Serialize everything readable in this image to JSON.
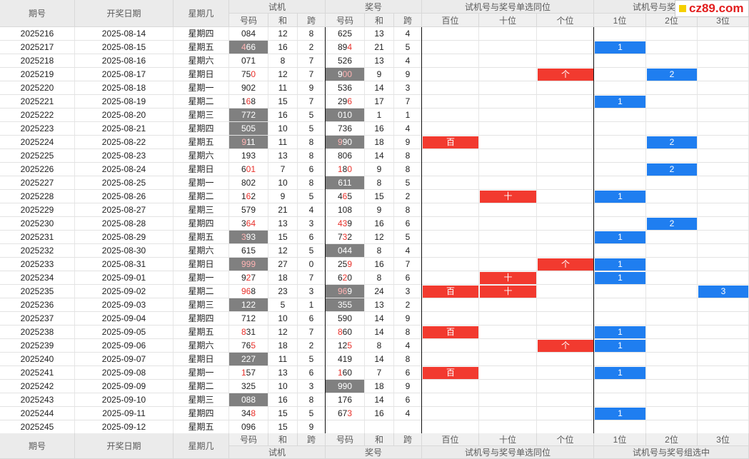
{
  "header": {
    "col_issue": "期号",
    "col_date": "开奖日期",
    "col_weekday": "星期几",
    "group_trial": "试机",
    "group_draw": "奖号",
    "group_same_pos": "试机号与奖号单选同位",
    "group_combo": "试机号与奖号组选中",
    "sub_code": "号码",
    "sub_sum": "和",
    "sub_span": "跨",
    "pos_hundred": "百位",
    "pos_ten": "十位",
    "pos_one": "个位",
    "combo_1": "1位",
    "combo_2": "2位",
    "combo_3": "3位"
  },
  "logo_text": "cz89.com",
  "colors": {
    "mark_red": "#f23a2f",
    "mark_blue": "#1f7ef0",
    "highlight_gray": "#808080",
    "digit_red": "#e8302a"
  },
  "rows": [
    {
      "issue": "2025216",
      "date": "2025-08-14",
      "weekday": "星期四",
      "trial": "084",
      "trial_sum": "12",
      "trial_span": "8",
      "draw": "625",
      "draw_sum": "13",
      "draw_span": "4",
      "trial_red": [],
      "draw_red": [],
      "trial_hl": false,
      "draw_hl": false,
      "pos_hundred": "",
      "pos_ten": "",
      "pos_one": "",
      "combo": ""
    },
    {
      "issue": "2025217",
      "date": "2025-08-15",
      "weekday": "星期五",
      "trial": "466",
      "trial_sum": "16",
      "trial_span": "2",
      "draw": "894",
      "draw_sum": "21",
      "draw_span": "5",
      "trial_red": [
        0
      ],
      "draw_red": [
        2
      ],
      "trial_hl": true,
      "draw_hl": false,
      "pos_hundred": "",
      "pos_ten": "",
      "pos_one": "",
      "combo": "1"
    },
    {
      "issue": "2025218",
      "date": "2025-08-16",
      "weekday": "星期六",
      "trial": "071",
      "trial_sum": "8",
      "trial_span": "7",
      "draw": "526",
      "draw_sum": "13",
      "draw_span": "4",
      "trial_red": [],
      "draw_red": [],
      "trial_hl": false,
      "draw_hl": false,
      "pos_hundred": "",
      "pos_ten": "",
      "pos_one": "",
      "combo": ""
    },
    {
      "issue": "2025219",
      "date": "2025-08-17",
      "weekday": "星期日",
      "trial": "750",
      "trial_sum": "12",
      "trial_span": "7",
      "draw": "900",
      "draw_sum": "9",
      "draw_span": "9",
      "trial_red": [
        2
      ],
      "draw_red": [
        1,
        2
      ],
      "trial_hl": false,
      "draw_hl": true,
      "pos_hundred": "",
      "pos_ten": "",
      "pos_one": "个",
      "combo": "2"
    },
    {
      "issue": "2025220",
      "date": "2025-08-18",
      "weekday": "星期一",
      "trial": "902",
      "trial_sum": "11",
      "trial_span": "9",
      "draw": "536",
      "draw_sum": "14",
      "draw_span": "3",
      "trial_red": [],
      "draw_red": [],
      "trial_hl": false,
      "draw_hl": false,
      "pos_hundred": "",
      "pos_ten": "",
      "pos_one": "",
      "combo": ""
    },
    {
      "issue": "2025221",
      "date": "2025-08-19",
      "weekday": "星期二",
      "trial": "168",
      "trial_sum": "15",
      "trial_span": "7",
      "draw": "296",
      "draw_sum": "17",
      "draw_span": "7",
      "trial_red": [
        1
      ],
      "draw_red": [
        2
      ],
      "trial_hl": false,
      "draw_hl": false,
      "pos_hundred": "",
      "pos_ten": "",
      "pos_one": "",
      "combo": "1"
    },
    {
      "issue": "2025222",
      "date": "2025-08-20",
      "weekday": "星期三",
      "trial": "772",
      "trial_sum": "16",
      "trial_span": "5",
      "draw": "010",
      "draw_sum": "1",
      "draw_span": "1",
      "trial_red": [],
      "draw_red": [],
      "trial_hl": true,
      "draw_hl": true,
      "pos_hundred": "",
      "pos_ten": "",
      "pos_one": "",
      "combo": ""
    },
    {
      "issue": "2025223",
      "date": "2025-08-21",
      "weekday": "星期四",
      "trial": "505",
      "trial_sum": "10",
      "trial_span": "5",
      "draw": "736",
      "draw_sum": "16",
      "draw_span": "4",
      "trial_red": [],
      "draw_red": [],
      "trial_hl": true,
      "draw_hl": false,
      "pos_hundred": "",
      "pos_ten": "",
      "pos_one": "",
      "combo": ""
    },
    {
      "issue": "2025224",
      "date": "2025-08-22",
      "weekday": "星期五",
      "trial": "911",
      "trial_sum": "11",
      "trial_span": "8",
      "draw": "990",
      "draw_sum": "18",
      "draw_span": "9",
      "trial_red": [
        0
      ],
      "draw_red": [
        0
      ],
      "trial_hl": true,
      "draw_hl": true,
      "pos_hundred": "百",
      "pos_ten": "",
      "pos_one": "",
      "combo": "2"
    },
    {
      "issue": "2025225",
      "date": "2025-08-23",
      "weekday": "星期六",
      "trial": "193",
      "trial_sum": "13",
      "trial_span": "8",
      "draw": "806",
      "draw_sum": "14",
      "draw_span": "8",
      "trial_red": [],
      "draw_red": [],
      "trial_hl": false,
      "draw_hl": false,
      "pos_hundred": "",
      "pos_ten": "",
      "pos_one": "",
      "combo": ""
    },
    {
      "issue": "2025226",
      "date": "2025-08-24",
      "weekday": "星期日",
      "trial": "601",
      "trial_sum": "7",
      "trial_span": "6",
      "draw": "180",
      "draw_sum": "9",
      "draw_span": "8",
      "trial_red": [
        1,
        2
      ],
      "draw_red": [
        0,
        2
      ],
      "trial_hl": false,
      "draw_hl": false,
      "pos_hundred": "",
      "pos_ten": "",
      "pos_one": "",
      "combo": "2"
    },
    {
      "issue": "2025227",
      "date": "2025-08-25",
      "weekday": "星期一",
      "trial": "802",
      "trial_sum": "10",
      "trial_span": "8",
      "draw": "611",
      "draw_sum": "8",
      "draw_span": "5",
      "trial_red": [],
      "draw_red": [],
      "trial_hl": false,
      "draw_hl": true,
      "pos_hundred": "",
      "pos_ten": "",
      "pos_one": "",
      "combo": ""
    },
    {
      "issue": "2025228",
      "date": "2025-08-26",
      "weekday": "星期二",
      "trial": "162",
      "trial_sum": "9",
      "trial_span": "5",
      "draw": "465",
      "draw_sum": "15",
      "draw_span": "2",
      "trial_red": [
        1
      ],
      "draw_red": [
        1
      ],
      "trial_hl": false,
      "draw_hl": false,
      "pos_hundred": "",
      "pos_ten": "十",
      "pos_one": "",
      "combo": "1"
    },
    {
      "issue": "2025229",
      "date": "2025-08-27",
      "weekday": "星期三",
      "trial": "579",
      "trial_sum": "21",
      "trial_span": "4",
      "draw": "108",
      "draw_sum": "9",
      "draw_span": "8",
      "trial_red": [],
      "draw_red": [],
      "trial_hl": false,
      "draw_hl": false,
      "pos_hundred": "",
      "pos_ten": "",
      "pos_one": "",
      "combo": ""
    },
    {
      "issue": "2025230",
      "date": "2025-08-28",
      "weekday": "星期四",
      "trial": "364",
      "trial_sum": "13",
      "trial_span": "3",
      "draw": "439",
      "draw_sum": "16",
      "draw_span": "6",
      "trial_red": [
        1,
        2
      ],
      "draw_red": [
        0,
        1
      ],
      "trial_hl": false,
      "draw_hl": false,
      "pos_hundred": "",
      "pos_ten": "",
      "pos_one": "",
      "combo": "2"
    },
    {
      "issue": "2025231",
      "date": "2025-08-29",
      "weekday": "星期五",
      "trial": "393",
      "trial_sum": "15",
      "trial_span": "6",
      "draw": "732",
      "draw_sum": "12",
      "draw_span": "5",
      "trial_red": [
        0
      ],
      "draw_red": [
        1
      ],
      "trial_hl": true,
      "draw_hl": false,
      "pos_hundred": "",
      "pos_ten": "",
      "pos_one": "",
      "combo": "1"
    },
    {
      "issue": "2025232",
      "date": "2025-08-30",
      "weekday": "星期六",
      "trial": "615",
      "trial_sum": "12",
      "trial_span": "5",
      "draw": "044",
      "draw_sum": "8",
      "draw_span": "4",
      "trial_red": [],
      "draw_red": [],
      "trial_hl": false,
      "draw_hl": true,
      "pos_hundred": "",
      "pos_ten": "",
      "pos_one": "",
      "combo": ""
    },
    {
      "issue": "2025233",
      "date": "2025-08-31",
      "weekday": "星期日",
      "trial": "999",
      "trial_sum": "27",
      "trial_span": "0",
      "draw": "259",
      "draw_sum": "16",
      "draw_span": "7",
      "trial_red": [
        0,
        1,
        2
      ],
      "draw_red": [
        2
      ],
      "trial_hl": true,
      "draw_hl": false,
      "pos_hundred": "",
      "pos_ten": "",
      "pos_one": "个",
      "combo": "1"
    },
    {
      "issue": "2025234",
      "date": "2025-09-01",
      "weekday": "星期一",
      "trial": "927",
      "trial_sum": "18",
      "trial_span": "7",
      "draw": "620",
      "draw_sum": "8",
      "draw_span": "6",
      "trial_red": [
        1
      ],
      "draw_red": [
        1
      ],
      "trial_hl": false,
      "draw_hl": false,
      "pos_hundred": "",
      "pos_ten": "十",
      "pos_one": "",
      "combo": "1"
    },
    {
      "issue": "2025235",
      "date": "2025-09-02",
      "weekday": "星期二",
      "trial": "968",
      "trial_sum": "23",
      "trial_span": "3",
      "draw": "969",
      "draw_sum": "24",
      "draw_span": "3",
      "trial_red": [
        0,
        1
      ],
      "draw_red": [
        0,
        1
      ],
      "trial_hl": false,
      "draw_hl": true,
      "pos_hundred": "百",
      "pos_ten": "十",
      "pos_one": "",
      "combo": "3"
    },
    {
      "issue": "2025236",
      "date": "2025-09-03",
      "weekday": "星期三",
      "trial": "122",
      "trial_sum": "5",
      "trial_span": "1",
      "draw": "355",
      "draw_sum": "13",
      "draw_span": "2",
      "trial_red": [],
      "draw_red": [],
      "trial_hl": true,
      "draw_hl": true,
      "pos_hundred": "",
      "pos_ten": "",
      "pos_one": "",
      "combo": ""
    },
    {
      "issue": "2025237",
      "date": "2025-09-04",
      "weekday": "星期四",
      "trial": "712",
      "trial_sum": "10",
      "trial_span": "6",
      "draw": "590",
      "draw_sum": "14",
      "draw_span": "9",
      "trial_red": [],
      "draw_red": [],
      "trial_hl": false,
      "draw_hl": false,
      "pos_hundred": "",
      "pos_ten": "",
      "pos_one": "",
      "combo": ""
    },
    {
      "issue": "2025238",
      "date": "2025-09-05",
      "weekday": "星期五",
      "trial": "831",
      "trial_sum": "12",
      "trial_span": "7",
      "draw": "860",
      "draw_sum": "14",
      "draw_span": "8",
      "trial_red": [
        0
      ],
      "draw_red": [
        0
      ],
      "trial_hl": false,
      "draw_hl": false,
      "pos_hundred": "百",
      "pos_ten": "",
      "pos_one": "",
      "combo": "1"
    },
    {
      "issue": "2025239",
      "date": "2025-09-06",
      "weekday": "星期六",
      "trial": "765",
      "trial_sum": "18",
      "trial_span": "2",
      "draw": "125",
      "draw_sum": "8",
      "draw_span": "4",
      "trial_red": [
        2
      ],
      "draw_red": [
        2
      ],
      "trial_hl": false,
      "draw_hl": false,
      "pos_hundred": "",
      "pos_ten": "",
      "pos_one": "个",
      "combo": "1"
    },
    {
      "issue": "2025240",
      "date": "2025-09-07",
      "weekday": "星期日",
      "trial": "227",
      "trial_sum": "11",
      "trial_span": "5",
      "draw": "419",
      "draw_sum": "14",
      "draw_span": "8",
      "trial_red": [],
      "draw_red": [],
      "trial_hl": true,
      "draw_hl": false,
      "pos_hundred": "",
      "pos_ten": "",
      "pos_one": "",
      "combo": ""
    },
    {
      "issue": "2025241",
      "date": "2025-09-08",
      "weekday": "星期一",
      "trial": "157",
      "trial_sum": "13",
      "trial_span": "6",
      "draw": "160",
      "draw_sum": "7",
      "draw_span": "6",
      "trial_red": [
        0
      ],
      "draw_red": [
        0
      ],
      "trial_hl": false,
      "draw_hl": false,
      "pos_hundred": "百",
      "pos_ten": "",
      "pos_one": "",
      "combo": "1"
    },
    {
      "issue": "2025242",
      "date": "2025-09-09",
      "weekday": "星期二",
      "trial": "325",
      "trial_sum": "10",
      "trial_span": "3",
      "draw": "990",
      "draw_sum": "18",
      "draw_span": "9",
      "trial_red": [],
      "draw_red": [],
      "trial_hl": false,
      "draw_hl": true,
      "pos_hundred": "",
      "pos_ten": "",
      "pos_one": "",
      "combo": ""
    },
    {
      "issue": "2025243",
      "date": "2025-09-10",
      "weekday": "星期三",
      "trial": "088",
      "trial_sum": "16",
      "trial_span": "8",
      "draw": "176",
      "draw_sum": "14",
      "draw_span": "6",
      "trial_red": [],
      "draw_red": [],
      "trial_hl": true,
      "draw_hl": false,
      "pos_hundred": "",
      "pos_ten": "",
      "pos_one": "",
      "combo": ""
    },
    {
      "issue": "2025244",
      "date": "2025-09-11",
      "weekday": "星期四",
      "trial": "348",
      "trial_sum": "15",
      "trial_span": "5",
      "draw": "673",
      "draw_sum": "16",
      "draw_span": "4",
      "trial_red": [
        2
      ],
      "draw_red": [
        2
      ],
      "trial_hl": false,
      "draw_hl": false,
      "pos_hundred": "",
      "pos_ten": "",
      "pos_one": "",
      "combo": "1"
    },
    {
      "issue": "2025245",
      "date": "2025-09-12",
      "weekday": "星期五",
      "trial": "096",
      "trial_sum": "15",
      "trial_span": "9",
      "draw": "",
      "draw_sum": "",
      "draw_span": "",
      "trial_red": [],
      "draw_red": [],
      "trial_hl": false,
      "draw_hl": false,
      "pos_hundred": "",
      "pos_ten": "",
      "pos_one": "",
      "combo": ""
    }
  ]
}
